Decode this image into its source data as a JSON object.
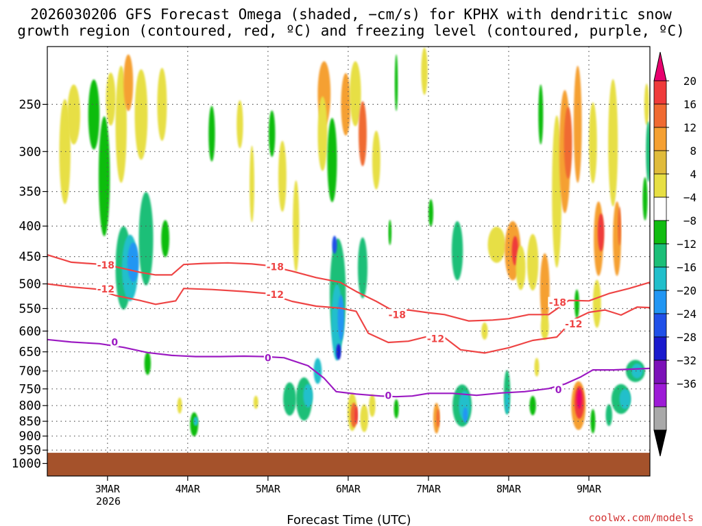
{
  "chart_data": {
    "type": "heatmap",
    "title_line1": "2026030206 GFS Forecast Omega (shaded, −cm/s) for KPHX with dendritic snow",
    "title_line2": "growth region (contoured, red, ºC) and freezing level (contoured, purple, ºC)",
    "xlabel": "Forecast Time (UTC)",
    "ylabel": "",
    "credit": "coolwx.com/models",
    "x_ticks": [
      {
        "label": "3MAR",
        "day": 3
      },
      {
        "label": "4MAR",
        "day": 4
      },
      {
        "label": "5MAR",
        "day": 5
      },
      {
        "label": "6MAR",
        "day": 6
      },
      {
        "label": "7MAR",
        "day": 7
      },
      {
        "label": "8MAR",
        "day": 8
      },
      {
        "label": "9MAR",
        "day": 9
      }
    ],
    "x_year_label": "2026",
    "xlim": [
      2.25,
      9.76
    ],
    "y_ticks": [
      250,
      300,
      350,
      400,
      450,
      500,
      550,
      600,
      650,
      700,
      750,
      800,
      850,
      900,
      950,
      1000
    ],
    "ylim": [
      1050,
      200
    ],
    "y_scale": "log-pressure",
    "ground_level_hpa": 960,
    "colorbar": {
      "labels": [
        "20",
        "16",
        "12",
        "8",
        "4",
        "−4",
        "−8",
        "−12",
        "−16",
        "−20",
        "−24",
        "−28",
        "−32",
        "−36"
      ],
      "colors": [
        "#e8006e",
        "#ef3b3b",
        "#f06a32",
        "#f5a033",
        "#e0bb3b",
        "#e7df44",
        "#ffffff",
        "#11bd11",
        "#1cbf78",
        "#21bfcb",
        "#2196f3",
        "#2050e8",
        "#1a1acd",
        "#7c11b8",
        "#9d1bd6",
        "#a9a9a9",
        "#000000"
      ]
    },
    "series": [
      {
        "name": "-18C isotherm",
        "color": "#ee4444",
        "labels": [
          {
            "text": "-18",
            "x": 2.98,
            "p": 465
          },
          {
            "text": "-18",
            "x": 5.09,
            "p": 468
          },
          {
            "text": "-18",
            "x": 6.61,
            "p": 563
          },
          {
            "text": "-18",
            "x": 8.61,
            "p": 537
          }
        ],
        "points": [
          [
            2.25,
            447
          ],
          [
            2.55,
            460
          ],
          [
            2.85,
            463
          ],
          [
            3.1,
            468
          ],
          [
            3.4,
            478
          ],
          [
            3.6,
            483
          ],
          [
            3.8,
            483
          ],
          [
            3.95,
            464
          ],
          [
            4.2,
            462
          ],
          [
            4.5,
            461
          ],
          [
            4.8,
            463
          ],
          [
            5.0,
            466
          ],
          [
            5.3,
            476
          ],
          [
            5.6,
            488
          ],
          [
            5.9,
            497
          ],
          [
            6.1,
            515
          ],
          [
            6.35,
            535
          ],
          [
            6.55,
            554
          ],
          [
            6.75,
            553
          ],
          [
            7.0,
            559
          ],
          [
            7.2,
            563
          ],
          [
            7.5,
            577
          ],
          [
            7.8,
            575
          ],
          [
            8.0,
            572
          ],
          [
            8.25,
            563
          ],
          [
            8.5,
            563
          ],
          [
            8.75,
            533
          ],
          [
            9.0,
            534
          ],
          [
            9.25,
            519
          ],
          [
            9.5,
            509
          ],
          [
            9.76,
            497
          ]
        ]
      },
      {
        "name": "-12C isotherm",
        "color": "#ee4444",
        "labels": [
          {
            "text": "-12",
            "x": 2.98,
            "p": 510
          },
          {
            "text": "-12",
            "x": 5.09,
            "p": 521
          },
          {
            "text": "-12",
            "x": 7.09,
            "p": 618
          },
          {
            "text": "-12",
            "x": 8.81,
            "p": 584
          }
        ],
        "points": [
          [
            2.25,
            500
          ],
          [
            2.55,
            506
          ],
          [
            2.85,
            510
          ],
          [
            3.1,
            523
          ],
          [
            3.4,
            533
          ],
          [
            3.6,
            541
          ],
          [
            3.85,
            534
          ],
          [
            3.95,
            509
          ],
          [
            4.3,
            511
          ],
          [
            4.7,
            515
          ],
          [
            5.0,
            519
          ],
          [
            5.3,
            535
          ],
          [
            5.6,
            545
          ],
          [
            5.9,
            549
          ],
          [
            6.1,
            556
          ],
          [
            6.25,
            605
          ],
          [
            6.5,
            627
          ],
          [
            6.75,
            624
          ],
          [
            7.0,
            612
          ],
          [
            7.2,
            615
          ],
          [
            7.4,
            645
          ],
          [
            7.7,
            653
          ],
          [
            8.0,
            640
          ],
          [
            8.3,
            622
          ],
          [
            8.6,
            614
          ],
          [
            8.8,
            575
          ],
          [
            9.0,
            558
          ],
          [
            9.2,
            553
          ],
          [
            9.4,
            564
          ],
          [
            9.6,
            547
          ],
          [
            9.76,
            548
          ]
        ]
      },
      {
        "name": "0C freezing level",
        "color": "#9b19c2",
        "labels": [
          {
            "text": "0",
            "x": 3.09,
            "p": 626
          },
          {
            "text": "0",
            "x": 5.0,
            "p": 665
          },
          {
            "text": "0",
            "x": 6.5,
            "p": 770
          },
          {
            "text": "0",
            "x": 8.62,
            "p": 752
          }
        ],
        "points": [
          [
            2.25,
            620
          ],
          [
            2.55,
            626
          ],
          [
            2.9,
            630
          ],
          [
            3.2,
            639
          ],
          [
            3.5,
            652
          ],
          [
            3.8,
            659
          ],
          [
            4.1,
            662
          ],
          [
            4.4,
            662
          ],
          [
            4.7,
            661
          ],
          [
            4.95,
            662
          ],
          [
            5.2,
            665
          ],
          [
            5.5,
            686
          ],
          [
            5.7,
            720
          ],
          [
            5.85,
            758
          ],
          [
            6.1,
            765
          ],
          [
            6.4,
            771
          ],
          [
            6.6,
            773
          ],
          [
            6.8,
            771
          ],
          [
            7.0,
            763
          ],
          [
            7.3,
            763
          ],
          [
            7.6,
            769
          ],
          [
            7.9,
            762
          ],
          [
            8.2,
            758
          ],
          [
            8.5,
            749
          ],
          [
            8.7,
            736
          ],
          [
            8.9,
            716
          ],
          [
            9.05,
            697
          ],
          [
            9.3,
            697
          ],
          [
            9.76,
            693
          ]
        ]
      }
    ],
    "omega_cells": [
      {
        "x": 2.47,
        "p": 300,
        "rx": 0.07,
        "rp": 120,
        "v": 5
      },
      {
        "x": 2.58,
        "p": 260,
        "rx": 0.08,
        "rp": 60,
        "v": 4
      },
      {
        "x": 2.83,
        "p": 260,
        "rx": 0.07,
        "rp": 70,
        "v": -6
      },
      {
        "x": 2.96,
        "p": 330,
        "rx": 0.07,
        "rp": 150,
        "v": -7
      },
      {
        "x": 3.04,
        "p": 245,
        "rx": 0.06,
        "rp": 50,
        "v": 5
      },
      {
        "x": 3.17,
        "p": 270,
        "rx": 0.07,
        "rp": 120,
        "v": 6
      },
      {
        "x": 3.26,
        "p": 230,
        "rx": 0.06,
        "rp": 50,
        "v": 10
      },
      {
        "x": 3.2,
        "p": 470,
        "rx": 0.1,
        "rp": 150,
        "v": -9
      },
      {
        "x": 3.28,
        "p": 470,
        "rx": 0.1,
        "rp": 120,
        "v": -14
      },
      {
        "x": 3.32,
        "p": 460,
        "rx": 0.07,
        "rp": 70,
        "v": -18
      },
      {
        "x": 3.48,
        "p": 420,
        "rx": 0.09,
        "rp": 150,
        "v": -8
      },
      {
        "x": 3.42,
        "p": 260,
        "rx": 0.08,
        "rp": 90,
        "v": 6
      },
      {
        "x": 3.68,
        "p": 250,
        "rx": 0.06,
        "rp": 70,
        "v": 5
      },
      {
        "x": 3.72,
        "p": 420,
        "rx": 0.05,
        "rp": 60,
        "v": -7
      },
      {
        "x": 3.5,
        "p": 680,
        "rx": 0.04,
        "rp": 60,
        "v": -6
      },
      {
        "x": 3.9,
        "p": 800,
        "rx": 0.03,
        "rp": 50,
        "v": 6
      },
      {
        "x": 4.08,
        "p": 860,
        "rx": 0.05,
        "rp": 80,
        "v": -7
      },
      {
        "x": 4.1,
        "p": 850,
        "rx": 0.03,
        "rp": 30,
        "v": -14
      },
      {
        "x": 4.3,
        "p": 280,
        "rx": 0.04,
        "rp": 60,
        "v": -6
      },
      {
        "x": 4.65,
        "p": 270,
        "rx": 0.04,
        "rp": 50,
        "v": 5
      },
      {
        "x": 4.8,
        "p": 340,
        "rx": 0.03,
        "rp": 100,
        "v": 5
      },
      {
        "x": 5.05,
        "p": 280,
        "rx": 0.04,
        "rp": 50,
        "v": -6
      },
      {
        "x": 4.85,
        "p": 790,
        "rx": 0.03,
        "rp": 40,
        "v": 5
      },
      {
        "x": 5.18,
        "p": 330,
        "rx": 0.05,
        "rp": 90,
        "v": 5
      },
      {
        "x": 5.35,
        "p": 400,
        "rx": 0.04,
        "rp": 140,
        "v": 6
      },
      {
        "x": 5.27,
        "p": 780,
        "rx": 0.08,
        "rp": 100,
        "v": -8
      },
      {
        "x": 5.45,
        "p": 780,
        "rx": 0.1,
        "rp": 130,
        "v": -10
      },
      {
        "x": 5.5,
        "p": 770,
        "rx": 0.06,
        "rp": 70,
        "v": -14
      },
      {
        "x": 5.62,
        "p": 700,
        "rx": 0.05,
        "rp": 70,
        "v": -14
      },
      {
        "x": 5.7,
        "p": 240,
        "rx": 0.08,
        "rp": 60,
        "v": 8
      },
      {
        "x": 5.68,
        "p": 280,
        "rx": 0.06,
        "rp": 80,
        "v": 5
      },
      {
        "x": 5.8,
        "p": 310,
        "rx": 0.06,
        "rp": 100,
        "v": -7
      },
      {
        "x": 5.87,
        "p": 520,
        "rx": 0.1,
        "rp": 220,
        "v": -10
      },
      {
        "x": 5.86,
        "p": 580,
        "rx": 0.07,
        "rp": 170,
        "v": -14
      },
      {
        "x": 5.91,
        "p": 570,
        "rx": 0.04,
        "rp": 100,
        "v": -18
      },
      {
        "x": 5.88,
        "p": 650,
        "rx": 0.03,
        "rp": 40,
        "v": -24
      },
      {
        "x": 5.83,
        "p": 430,
        "rx": 0.03,
        "rp": 30,
        "v": -20
      },
      {
        "x": 5.97,
        "p": 250,
        "rx": 0.06,
        "rp": 60,
        "v": 8
      },
      {
        "x": 6.09,
        "p": 240,
        "rx": 0.07,
        "rp": 60,
        "v": 6
      },
      {
        "x": 6.18,
        "p": 280,
        "rx": 0.05,
        "rp": 70,
        "v": 12
      },
      {
        "x": 6.18,
        "p": 470,
        "rx": 0.06,
        "rp": 110,
        "v": -8
      },
      {
        "x": 6.05,
        "p": 820,
        "rx": 0.06,
        "rp": 120,
        "v": 7
      },
      {
        "x": 6.07,
        "p": 830,
        "rx": 0.04,
        "rp": 80,
        "v": 14
      },
      {
        "x": 6.1,
        "p": 830,
        "rx": 0.02,
        "rp": 60,
        "v": 18
      },
      {
        "x": 6.2,
        "p": 840,
        "rx": 0.05,
        "rp": 90,
        "v": 6
      },
      {
        "x": 6.3,
        "p": 800,
        "rx": 0.04,
        "rp": 70,
        "v": 5
      },
      {
        "x": 6.35,
        "p": 310,
        "rx": 0.05,
        "rp": 70,
        "v": 5
      },
      {
        "x": 6.52,
        "p": 410,
        "rx": 0.02,
        "rp": 40,
        "v": -6
      },
      {
        "x": 6.6,
        "p": 810,
        "rx": 0.03,
        "rp": 60,
        "v": -7
      },
      {
        "x": 6.6,
        "p": 230,
        "rx": 0.02,
        "rp": 50,
        "v": -7
      },
      {
        "x": 6.95,
        "p": 220,
        "rx": 0.04,
        "rp": 40,
        "v": 5
      },
      {
        "x": 7.03,
        "p": 380,
        "rx": 0.03,
        "rp": 40,
        "v": -6
      },
      {
        "x": 7.1,
        "p": 840,
        "rx": 0.04,
        "rp": 100,
        "v": 8
      },
      {
        "x": 7.12,
        "p": 840,
        "rx": 0.02,
        "rp": 60,
        "v": 13
      },
      {
        "x": 7.36,
        "p": 440,
        "rx": 0.07,
        "rp": 100,
        "v": -8
      },
      {
        "x": 7.42,
        "p": 800,
        "rx": 0.12,
        "rp": 130,
        "v": -9
      },
      {
        "x": 7.45,
        "p": 800,
        "rx": 0.07,
        "rp": 90,
        "v": -13
      },
      {
        "x": 7.46,
        "p": 830,
        "rx": 0.03,
        "rp": 50,
        "v": -18
      },
      {
        "x": 7.85,
        "p": 430,
        "rx": 0.11,
        "rp": 60,
        "v": 6
      },
      {
        "x": 7.7,
        "p": 600,
        "rx": 0.04,
        "rp": 40,
        "v": 5
      },
      {
        "x": 7.98,
        "p": 760,
        "rx": 0.04,
        "rp": 130,
        "v": -8
      },
      {
        "x": 7.98,
        "p": 790,
        "rx": 0.03,
        "rp": 70,
        "v": -13
      },
      {
        "x": 8.05,
        "p": 440,
        "rx": 0.1,
        "rp": 100,
        "v": 8
      },
      {
        "x": 8.08,
        "p": 440,
        "rx": 0.04,
        "rp": 50,
        "v": 16
      },
      {
        "x": 8.15,
        "p": 470,
        "rx": 0.06,
        "rp": 80,
        "v": 6
      },
      {
        "x": 8.3,
        "p": 460,
        "rx": 0.07,
        "rp": 100,
        "v": 5
      },
      {
        "x": 8.45,
        "p": 510,
        "rx": 0.06,
        "rp": 140,
        "v": 8
      },
      {
        "x": 8.45,
        "p": 590,
        "rx": 0.05,
        "rp": 60,
        "v": 5
      },
      {
        "x": 8.3,
        "p": 800,
        "rx": 0.04,
        "rp": 60,
        "v": -7
      },
      {
        "x": 8.4,
        "p": 260,
        "rx": 0.03,
        "rp": 60,
        "v": -6
      },
      {
        "x": 8.35,
        "p": 690,
        "rx": 0.03,
        "rp": 50,
        "v": 5
      },
      {
        "x": 8.6,
        "p": 350,
        "rx": 0.06,
        "rp": 200,
        "v": 6
      },
      {
        "x": 8.7,
        "p": 300,
        "rx": 0.07,
        "rp": 140,
        "v": 10
      },
      {
        "x": 8.74,
        "p": 290,
        "rx": 0.05,
        "rp": 80,
        "v": 12
      },
      {
        "x": 8.86,
        "p": 270,
        "rx": 0.05,
        "rp": 120,
        "v": 8
      },
      {
        "x": 8.87,
        "p": 800,
        "rx": 0.09,
        "rp": 150,
        "v": 8
      },
      {
        "x": 8.88,
        "p": 790,
        "rx": 0.06,
        "rp": 100,
        "v": 16
      },
      {
        "x": 8.88,
        "p": 780,
        "rx": 0.03,
        "rp": 60,
        "v": 20
      },
      {
        "x": 8.85,
        "p": 540,
        "rx": 0.03,
        "rp": 60,
        "v": -7
      },
      {
        "x": 9.05,
        "p": 290,
        "rx": 0.05,
        "rp": 90,
        "v": 6
      },
      {
        "x": 9.12,
        "p": 420,
        "rx": 0.06,
        "rp": 120,
        "v": 8
      },
      {
        "x": 9.15,
        "p": 410,
        "rx": 0.04,
        "rp": 60,
        "v": 16
      },
      {
        "x": 9.1,
        "p": 540,
        "rx": 0.05,
        "rp": 100,
        "v": 6
      },
      {
        "x": 9.3,
        "p": 290,
        "rx": 0.06,
        "rp": 140,
        "v": 5
      },
      {
        "x": 9.35,
        "p": 420,
        "rx": 0.05,
        "rp": 120,
        "v": 8
      },
      {
        "x": 9.38,
        "p": 400,
        "rx": 0.02,
        "rp": 60,
        "v": 13
      },
      {
        "x": 9.25,
        "p": 830,
        "rx": 0.04,
        "rp": 70,
        "v": -8
      },
      {
        "x": 9.4,
        "p": 780,
        "rx": 0.12,
        "rp": 90,
        "v": -9
      },
      {
        "x": 9.45,
        "p": 780,
        "rx": 0.07,
        "rp": 60,
        "v": -13
      },
      {
        "x": 9.58,
        "p": 700,
        "rx": 0.12,
        "rp": 60,
        "v": -10
      },
      {
        "x": 9.6,
        "p": 700,
        "rx": 0.07,
        "rp": 40,
        "v": -12
      },
      {
        "x": 9.72,
        "p": 250,
        "rx": 0.03,
        "rp": 40,
        "v": 5
      },
      {
        "x": 9.74,
        "p": 300,
        "rx": 0.03,
        "rp": 70,
        "v": -10
      },
      {
        "x": 9.7,
        "p": 360,
        "rx": 0.03,
        "rp": 60,
        "v": -6
      },
      {
        "x": 9.05,
        "p": 850,
        "rx": 0.03,
        "rp": 80,
        "v": -7
      }
    ]
  }
}
